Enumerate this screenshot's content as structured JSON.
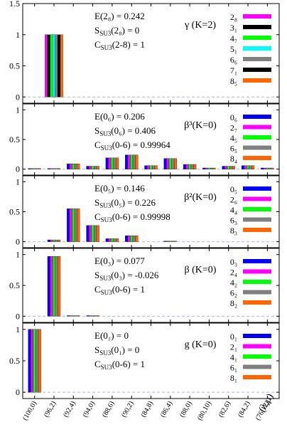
{
  "chart_data": {
    "type": "bar",
    "categories": [
      "(100,0)",
      "(96,2)",
      "(92,4)",
      "(94,0)",
      "(88,6)",
      "(90,2)",
      "(84,8)",
      "(86,4)",
      "(88,0)",
      "(80,10)",
      "(82,6)",
      "(84,2)",
      "(76,12)"
    ],
    "xlabel": "(λ,μ)",
    "colors": [
      "#0000ff",
      "#ff00ff",
      "#00ff00",
      "#00ffff",
      "#808080",
      "#000000",
      "#ff6600"
    ],
    "panels": [
      {
        "title": "γ (K=2)",
        "lines": [
          "E(2₈) = 0.242",
          "S_SU3(2₈) = 0",
          "C_SU3(2-8) = 1"
        ],
        "ylim": [
          -0.1,
          1.5
        ],
        "yticks": [
          "0",
          "0.5",
          "1",
          "1.5"
        ],
        "series": [
          {
            "name": "2₈",
            "color": "#ff00ff",
            "values": [
              0,
              1,
              0,
              0,
              0,
              0,
              0,
              0,
              0,
              0,
              0,
              0,
              0
            ]
          },
          {
            "name": "3₁",
            "color": "#000000",
            "values": [
              0,
              1,
              0,
              0,
              0,
              0,
              0,
              0,
              0,
              0,
              0,
              0,
              0
            ]
          },
          {
            "name": "4₇",
            "color": "#00ff00",
            "values": [
              0,
              1,
              0,
              0,
              0,
              0,
              0,
              0,
              0,
              0,
              0,
              0,
              0
            ]
          },
          {
            "name": "5₁",
            "color": "#00ffff",
            "values": [
              0,
              1,
              0,
              0,
              0,
              0,
              0,
              0,
              0,
              0,
              0,
              0,
              0
            ]
          },
          {
            "name": "6₆",
            "color": "#808080",
            "values": [
              0,
              1,
              0,
              0,
              0,
              0,
              0,
              0,
              0,
              0,
              0,
              0,
              0
            ]
          },
          {
            "name": "7₁",
            "color": "#000000",
            "values": [
              0,
              1,
              0,
              0,
              0,
              0,
              0,
              0,
              0,
              0,
              0,
              0,
              0
            ]
          },
          {
            "name": "8₅",
            "color": "#ff6600",
            "values": [
              0,
              1,
              0,
              0,
              0,
              0,
              0,
              0,
              0,
              0,
              0,
              0,
              0
            ]
          }
        ]
      },
      {
        "title": "β³(K=0)",
        "lines": [
          "E(0₆) = 0.206",
          "S_SU3(0₆) = 0.406",
          "C_SU3(0-6) = 0.99964"
        ],
        "ylim": [
          -0.1,
          1.1
        ],
        "yticks": [
          "0",
          "0.5",
          "1"
        ],
        "series": [
          {
            "name": "0₆",
            "color": "#0000ff",
            "values": [
              0.01,
              0.01,
              0.09,
              0.05,
              0.19,
              0.24,
              0.06,
              0.18,
              0.08,
              0.02,
              0.05,
              0.06,
              0.02
            ]
          },
          {
            "name": "2₇",
            "color": "#ff00ff",
            "values": [
              0.01,
              0.01,
              0.09,
              0.05,
              0.19,
              0.24,
              0.06,
              0.18,
              0.08,
              0.02,
              0.05,
              0.06,
              0.02
            ]
          },
          {
            "name": "4₅",
            "color": "#00ff00",
            "values": [
              0.01,
              0.01,
              0.09,
              0.05,
              0.19,
              0.24,
              0.06,
              0.18,
              0.08,
              0.02,
              0.05,
              0.06,
              0.02
            ]
          },
          {
            "name": "6₅",
            "color": "#808080",
            "values": [
              0.01,
              0.01,
              0.09,
              0.05,
              0.19,
              0.24,
              0.06,
              0.18,
              0.08,
              0.02,
              0.05,
              0.06,
              0.02
            ]
          },
          {
            "name": "8₄",
            "color": "#ff6600",
            "values": [
              0.01,
              0.01,
              0.09,
              0.05,
              0.19,
              0.24,
              0.06,
              0.18,
              0.08,
              0.02,
              0.05,
              0.06,
              0.02
            ]
          }
        ]
      },
      {
        "title": "β²(K=0)",
        "lines": [
          "E(0₅) = 0.146",
          "S_SU3(0₅) = 0.226",
          "C_SU3(0-6) = 0.99998"
        ],
        "ylim": [
          -0.1,
          1.1
        ],
        "yticks": [
          "0",
          "0.5",
          "1"
        ],
        "series": [
          {
            "name": "0₅",
            "color": "#0000ff",
            "values": [
              0,
              0.03,
              0.55,
              0.27,
              0.05,
              0.1,
              0,
              0.01,
              0,
              0,
              0,
              0,
              0
            ]
          },
          {
            "name": "2₆",
            "color": "#ff00ff",
            "values": [
              0,
              0.03,
              0.55,
              0.27,
              0.05,
              0.1,
              0,
              0.01,
              0,
              0,
              0,
              0,
              0
            ]
          },
          {
            "name": "4₄",
            "color": "#00ff00",
            "values": [
              0,
              0.03,
              0.55,
              0.27,
              0.05,
              0.1,
              0,
              0.01,
              0,
              0,
              0,
              0,
              0
            ]
          },
          {
            "name": "6₃",
            "color": "#808080",
            "values": [
              0,
              0.03,
              0.55,
              0.27,
              0.05,
              0.1,
              0,
              0.01,
              0,
              0,
              0,
              0,
              0
            ]
          },
          {
            "name": "8₃",
            "color": "#ff6600",
            "values": [
              0,
              0.03,
              0.55,
              0.27,
              0.05,
              0.1,
              0,
              0.01,
              0,
              0,
              0,
              0,
              0
            ]
          }
        ]
      },
      {
        "title": "β (K=0)",
        "lines": [
          "E(0₃) = 0.077",
          "S_SU3(0₃) = -0.026",
          "C_SU3(0-6) = 1"
        ],
        "ylim": [
          -0.1,
          1.1
        ],
        "yticks": [
          "0",
          "0.5",
          "1"
        ],
        "series": [
          {
            "name": "0₃",
            "color": "#0000ff",
            "values": [
              0,
              0.97,
              0.01,
              0.01,
              0,
              0,
              0,
              0,
              0,
              0,
              0,
              0,
              0
            ]
          },
          {
            "name": "2₄",
            "color": "#ff00ff",
            "values": [
              0,
              0.97,
              0.01,
              0.01,
              0,
              0,
              0,
              0,
              0,
              0,
              0,
              0,
              0
            ]
          },
          {
            "name": "4₂",
            "color": "#00ff00",
            "values": [
              0,
              0.97,
              0.01,
              0.01,
              0,
              0,
              0,
              0,
              0,
              0,
              0,
              0,
              0
            ]
          },
          {
            "name": "6₂",
            "color": "#808080",
            "values": [
              0,
              0.97,
              0.01,
              0.01,
              0,
              0,
              0,
              0,
              0,
              0,
              0,
              0,
              0
            ]
          },
          {
            "name": "8₂",
            "color": "#ff6600",
            "values": [
              0,
              0.97,
              0.01,
              0.01,
              0,
              0,
              0,
              0,
              0,
              0,
              0,
              0,
              0
            ]
          }
        ]
      },
      {
        "title": "g (K=0)",
        "lines": [
          "E(0₁) = 0",
          "S_SU3(0₁) = 0",
          "C_SU3(0-6) = 1"
        ],
        "ylim": [
          -0.1,
          1.1
        ],
        "yticks": [
          "0",
          "0.5",
          "1"
        ],
        "series": [
          {
            "name": "0₁",
            "color": "#0000ff",
            "values": [
              1,
              0,
              0,
              0,
              0,
              0,
              0,
              0,
              0,
              0,
              0,
              0,
              0
            ]
          },
          {
            "name": "2₁",
            "color": "#ff00ff",
            "values": [
              1,
              0,
              0,
              0,
              0,
              0,
              0,
              0,
              0,
              0,
              0,
              0,
              0
            ]
          },
          {
            "name": "4₁",
            "color": "#00ff00",
            "values": [
              1,
              0,
              0,
              0,
              0,
              0,
              0,
              0,
              0,
              0,
              0,
              0,
              0
            ]
          },
          {
            "name": "6₁",
            "color": "#808080",
            "values": [
              1,
              0,
              0,
              0,
              0,
              0,
              0,
              0,
              0,
              0,
              0,
              0,
              0
            ]
          },
          {
            "name": "8₁",
            "color": "#ff6600",
            "values": [
              1,
              0,
              0,
              0,
              0,
              0,
              0,
              0,
              0,
              0,
              0,
              0,
              0
            ]
          }
        ]
      }
    ]
  }
}
